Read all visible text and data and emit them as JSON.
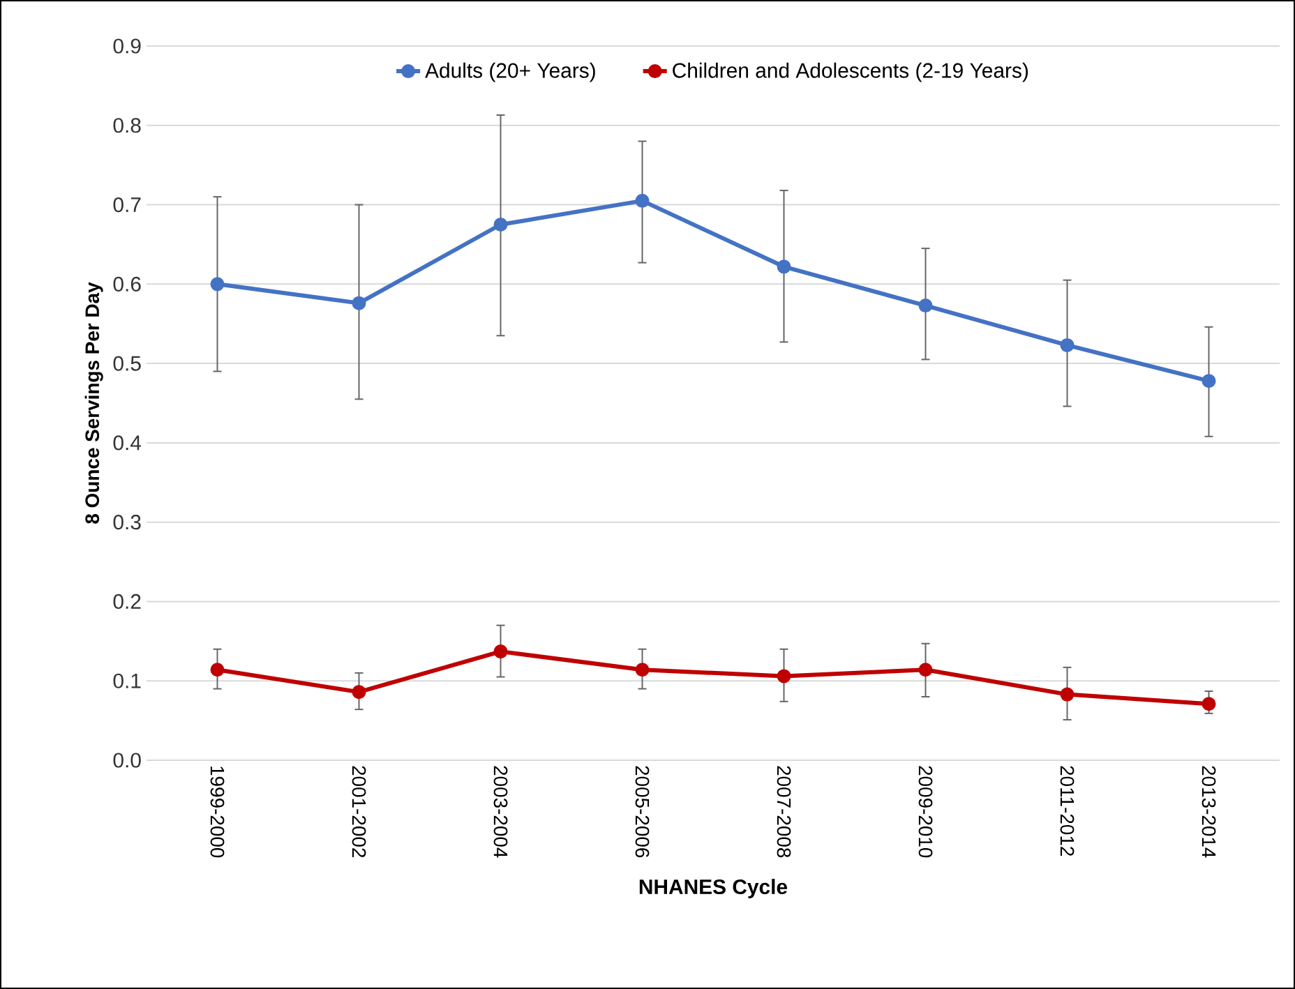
{
  "chart_data": {
    "type": "line",
    "xlabel": "NHANES Cycle",
    "ylabel": "8 Ounce Servings Per Day",
    "categories": [
      "1999-2000",
      "2001-2002",
      "2003-2004",
      "2005-2006",
      "2007-2008",
      "2009-2010",
      "2011-2012",
      "2013-2014"
    ],
    "series": [
      {
        "name": "Adults (20+ Years)",
        "color": "#4472c4",
        "values": [
          0.6,
          0.576,
          0.675,
          0.705,
          0.622,
          0.573,
          0.523,
          0.478
        ],
        "errors": [
          [
            0.49,
            0.71
          ],
          [
            0.455,
            0.7
          ],
          [
            0.535,
            0.813
          ],
          [
            0.627,
            0.78
          ],
          [
            0.527,
            0.718
          ],
          [
            0.505,
            0.645
          ],
          [
            0.446,
            0.605
          ],
          [
            0.408,
            0.546
          ]
        ]
      },
      {
        "name": "Children and Adolescents (2-19 Years)",
        "color": "#c00000",
        "values": [
          0.114,
          0.086,
          0.137,
          0.114,
          0.106,
          0.114,
          0.083,
          0.071
        ],
        "errors": [
          [
            0.09,
            0.14
          ],
          [
            0.064,
            0.11
          ],
          [
            0.105,
            0.17
          ],
          [
            0.09,
            0.14
          ],
          [
            0.074,
            0.14
          ],
          [
            0.08,
            0.147
          ],
          [
            0.051,
            0.117
          ],
          [
            0.059,
            0.087
          ]
        ]
      }
    ],
    "ylim": [
      0,
      0.9
    ],
    "yticks": [
      {
        "value": 0,
        "label": "0.0"
      },
      0.1,
      0.2,
      0.3,
      0.4,
      0.5,
      0.6,
      0.7,
      0.8,
      0.9
    ],
    "grid": "y",
    "legend": "top",
    "marker": "circle",
    "line_style": "solid"
  }
}
